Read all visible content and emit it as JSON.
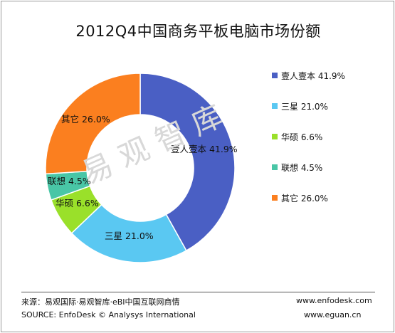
{
  "chart_data": {
    "type": "pie",
    "title": "2012Q4中国商务平板电脑市场份额",
    "slices": [
      {
        "label": "壹人壹本",
        "value": 41.9,
        "value_text": "41.9%",
        "color": "#4a5fc4"
      },
      {
        "label": "三星",
        "value": 21.0,
        "value_text": "21.0%",
        "color": "#5ac8f2"
      },
      {
        "label": "华硕",
        "value": 6.6,
        "value_text": "6.6%",
        "color": "#9ae02a"
      },
      {
        "label": "联想",
        "value": 4.5,
        "value_text": "4.5%",
        "color": "#49c6a6"
      },
      {
        "label": "其它",
        "value": 26.0,
        "value_text": "26.0%",
        "color": "#fb7f1f"
      }
    ],
    "donut": true,
    "legend_position": "right"
  },
  "watermark": "易观智库",
  "footer": {
    "source_cn": "来源：易观国际·易观智库·eBI中国互联网商情",
    "source_en": "SOURCE: EnfoDesk © Analysys International",
    "site1": "www.enfodesk.com",
    "site2": "www.eguan.cn"
  }
}
